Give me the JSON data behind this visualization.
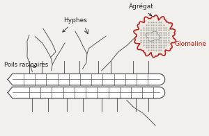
{
  "bg_color": "#f2f0ed",
  "root_fill": "#ffffff",
  "root_outline": "#555555",
  "hyphae_color": "#555555",
  "aggregate_fill": "#ede8e0",
  "aggregate_outline": "#bb2222",
  "aggregate_dot_color": "#aaaaaa",
  "root_hair_color": "#666666",
  "text_color": "#222222",
  "glomaline_color": "#cc1100",
  "label_hyphes": "Hyphes",
  "label_agregat": "Agrégat",
  "label_glomaline": "Glomaline",
  "label_poils": "Poils racinaires"
}
